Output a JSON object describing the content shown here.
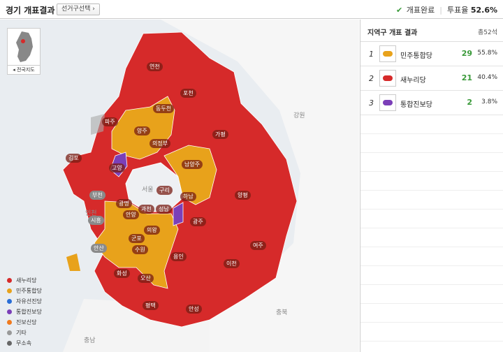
{
  "header": {
    "title": "경기 개표결과",
    "select_label": "선거구선택",
    "count_complete": "개표완료",
    "turnout_label": "투표율",
    "turnout_value": "52.6%"
  },
  "minimap": {
    "label": "전국지도"
  },
  "panel": {
    "title": "지역구 개표 결과",
    "total": "총52석",
    "parties": [
      {
        "rank": "1",
        "name": "민주통합당",
        "seats": "29",
        "share": "55.8%",
        "color": "#e8a21b"
      },
      {
        "rank": "2",
        "name": "새누리당",
        "seats": "21",
        "share": "40.4%",
        "color": "#d62a2a"
      },
      {
        "rank": "3",
        "name": "통합진보당",
        "seats": "2",
        "share": "3.8%",
        "color": "#7b3fb8"
      }
    ]
  },
  "legend": [
    {
      "label": "새누리당",
      "color": "#d62a2a"
    },
    {
      "label": "민주통합당",
      "color": "#e8a21b"
    },
    {
      "label": "자유선진당",
      "color": "#2a6ed6"
    },
    {
      "label": "통합진보당",
      "color": "#7b3fb8"
    },
    {
      "label": "진보신당",
      "color": "#f07a1e"
    },
    {
      "label": "기타",
      "color": "#999999"
    },
    {
      "label": "무소속",
      "color": "#666666"
    }
  ],
  "map": {
    "outside_labels": {
      "gangwon": "강원",
      "chungbuk": "충북",
      "chungnam": "충남",
      "seoul": "서울",
      "incheon": "인천"
    },
    "regions": {
      "yeoncheon": "연천",
      "pocheon": "포천",
      "paju": "파주",
      "dongducheon": "동두천",
      "yangju": "양주",
      "uijeongbu": "의정부",
      "gapyeong": "가평",
      "gimpo": "김포",
      "goyang": "고양",
      "namyangju": "남양주",
      "yangpyeong": "양평",
      "guri": "구리",
      "hanam": "하남",
      "bucheon": "부천",
      "gwangmyeong": "광명",
      "gwacheon": "과천",
      "seongnam": "성남",
      "siheung": "시흥",
      "anyang": "안양",
      "gwangju": "광주",
      "uiwang": "의왕",
      "gunpo": "군포",
      "ansan": "안산",
      "suwon": "수원",
      "yeoju": "여주",
      "yongin": "용인",
      "icheon": "이천",
      "hwaseong": "화성",
      "osan": "오산",
      "pyeongtaek": "평택",
      "anseong": "안성"
    }
  }
}
